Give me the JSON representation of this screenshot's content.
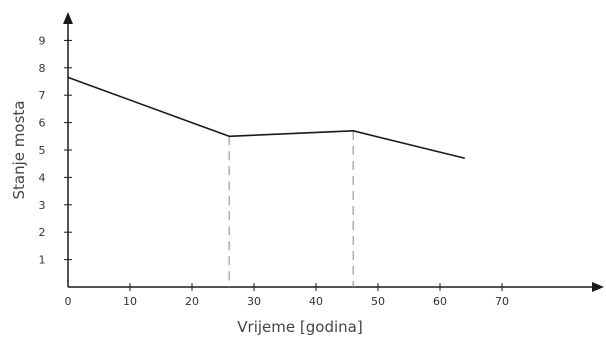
{
  "chart_data": {
    "type": "line",
    "title": "",
    "xlabel": "Vrijeme [godina]",
    "ylabel": "Stanje mosta",
    "xlim": [
      0,
      70
    ],
    "ylim": [
      0,
      9
    ],
    "xticks": [
      0,
      10,
      20,
      30,
      40,
      50,
      60,
      70
    ],
    "yticks": [
      1,
      2,
      3,
      4,
      5,
      6,
      7,
      8,
      9
    ],
    "grid": false,
    "series": [
      {
        "x": [
          0,
          26,
          46,
          64
        ],
        "y": [
          7.65,
          5.5,
          5.7,
          4.7
        ]
      }
    ],
    "annotations": {
      "vertical_dashed_lines_at_x": [
        26,
        46
      ]
    },
    "line_color": "#1a1a1a",
    "axis_color": "#1a1a1a",
    "dash_color": "#9a9a9a"
  }
}
